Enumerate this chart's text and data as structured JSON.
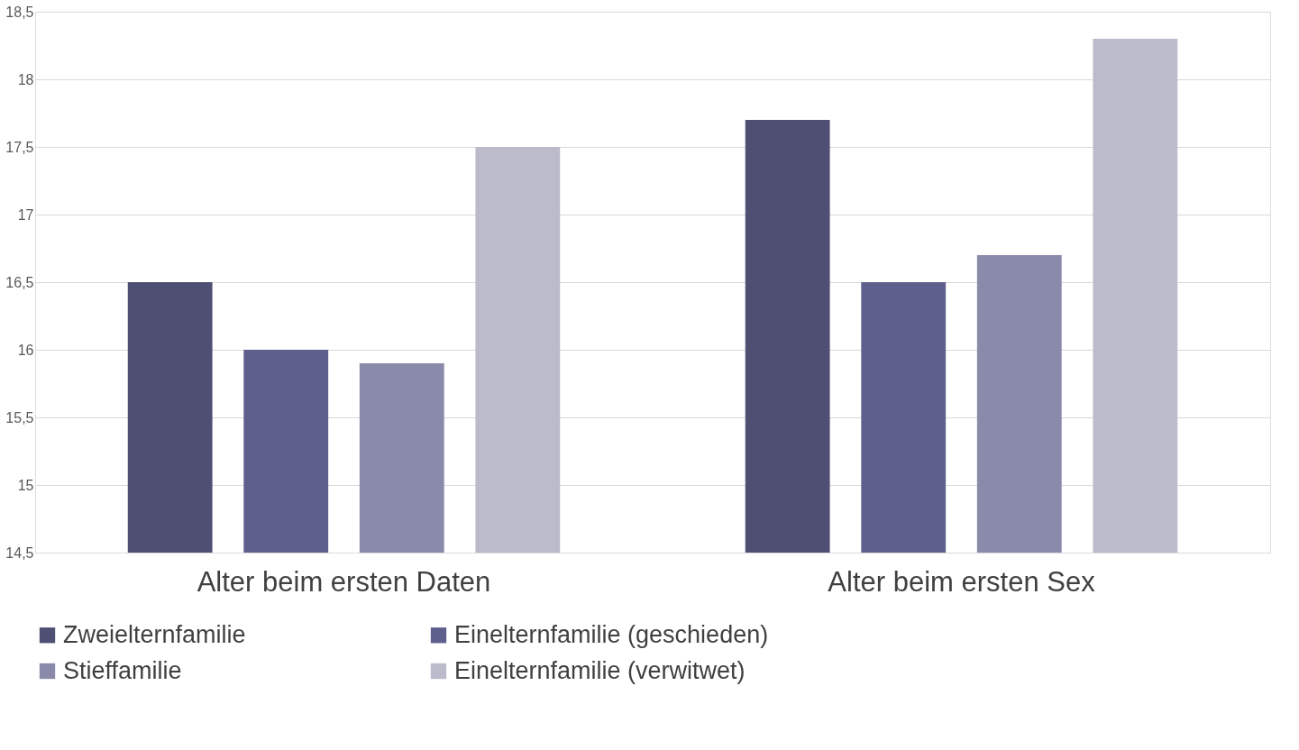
{
  "chart_data": {
    "type": "bar",
    "categories": [
      "Alter beim ersten Daten",
      "Alter beim ersten Sex"
    ],
    "series": [
      {
        "name": "Zweielternfamilie",
        "color": "#4f4f73",
        "values": [
          16.5,
          17.7
        ]
      },
      {
        "name": "Einelternfamilie (geschieden)",
        "color": "#5f5f8e",
        "values": [
          16.0,
          16.5
        ]
      },
      {
        "name": "Stieffamilie",
        "color": "#8a8aab",
        "values": [
          15.9,
          16.7
        ]
      },
      {
        "name": "Einelternfamilie (verwitwet)",
        "color": "#bbbbcc",
        "values": [
          17.5,
          18.3
        ]
      }
    ],
    "ylim": [
      14.5,
      18.5
    ],
    "yticks": [
      {
        "value": 14.5,
        "label": "14,5"
      },
      15,
      {
        "value": 15.5,
        "label": "15,5"
      },
      16,
      {
        "value": 16.5,
        "label": "16,5"
      },
      17,
      {
        "value": 17.5,
        "label": "17,5"
      },
      18,
      {
        "value": 18.5,
        "label": "18,5"
      }
    ],
    "grid": "y",
    "legend": "bottom"
  }
}
